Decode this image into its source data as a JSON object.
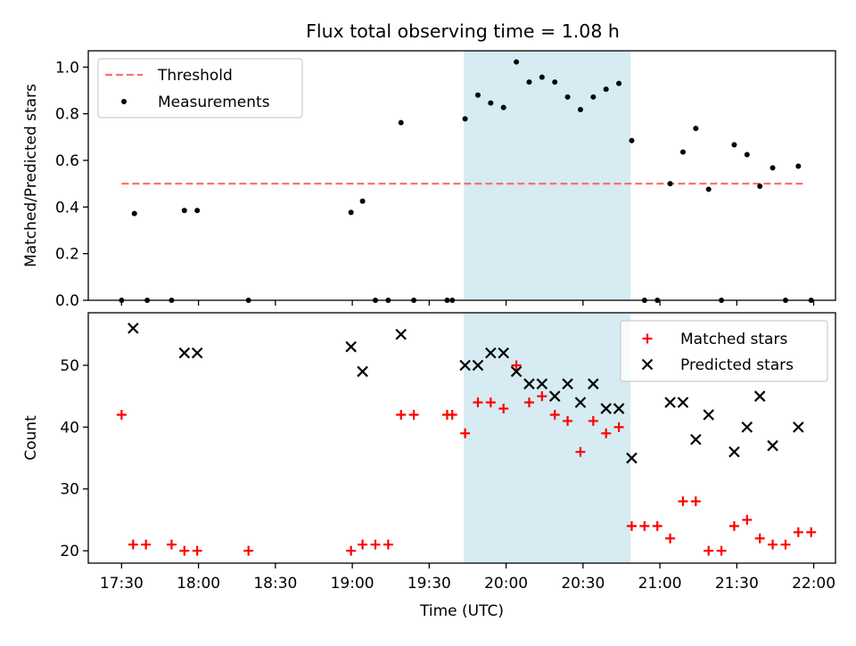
{
  "chart_data": {
    "type": "scatter",
    "title": "Flux total observing time = 1.08 h",
    "xlabel": "Time (UTC)",
    "x_ticks": [
      {
        "t": 0,
        "label": "17:30"
      },
      {
        "t": 30,
        "label": "18:00"
      },
      {
        "t": 60,
        "label": "18:30"
      },
      {
        "t": 90,
        "label": "19:00"
      },
      {
        "t": 120,
        "label": "19:30"
      },
      {
        "t": 150,
        "label": "20:00"
      },
      {
        "t": 180,
        "label": "20:30"
      },
      {
        "t": 210,
        "label": "21:00"
      },
      {
        "t": 240,
        "label": "21:30"
      },
      {
        "t": 270,
        "label": "22:00"
      }
    ],
    "highlight_span": {
      "start": 133.5,
      "end": 198.5,
      "color": "#add8e6"
    },
    "top_panel": {
      "ylabel": "Matched/Predicted stars",
      "ylim": [
        0,
        1.07
      ],
      "y_ticks": [
        {
          "v": 0.0,
          "label": "0.0"
        },
        {
          "v": 0.2,
          "label": "0.2"
        },
        {
          "v": 0.4,
          "label": "0.4"
        },
        {
          "v": 0.6,
          "label": "0.6"
        },
        {
          "v": 0.8,
          "label": "0.8"
        },
        {
          "v": 1.0,
          "label": "1.0"
        }
      ],
      "legend_position": "top-left",
      "threshold": {
        "name": "Threshold",
        "value": 0.5,
        "t_start": 0,
        "t_end": 267,
        "color": "#ff7070"
      },
      "measurements": {
        "name": "Measurements",
        "color": "#000000",
        "points": [
          [
            0,
            0
          ],
          [
            5,
            0.372
          ],
          [
            10,
            0
          ],
          [
            19.5,
            0
          ],
          [
            24.5,
            0.385
          ],
          [
            29.5,
            0.385
          ],
          [
            49.5,
            0
          ],
          [
            89.5,
            0.377
          ],
          [
            94,
            0.425
          ],
          [
            99,
            0
          ],
          [
            104,
            0
          ],
          [
            109,
            0.762
          ],
          [
            114,
            0
          ],
          [
            127,
            0
          ],
          [
            129,
            0
          ],
          [
            134,
            0.778
          ],
          [
            139,
            0.88
          ],
          [
            144,
            0.846
          ],
          [
            149,
            0.827
          ],
          [
            154,
            1.022
          ],
          [
            159,
            0.936
          ],
          [
            164,
            0.957
          ],
          [
            169,
            0.936
          ],
          [
            174,
            0.872
          ],
          [
            179,
            0.818
          ],
          [
            184,
            0.872
          ],
          [
            189,
            0.905
          ],
          [
            194,
            0.93
          ],
          [
            199,
            0.685
          ],
          [
            204,
            0
          ],
          [
            209,
            0
          ],
          [
            214,
            0.5
          ],
          [
            219,
            0.636
          ],
          [
            224,
            0.737
          ],
          [
            229,
            0.476
          ],
          [
            234,
            0
          ],
          [
            239,
            0.667
          ],
          [
            244,
            0.625
          ],
          [
            249,
            0.489
          ],
          [
            254,
            0.568
          ],
          [
            259,
            0
          ],
          [
            264,
            0.575
          ],
          [
            269,
            0
          ]
        ]
      }
    },
    "bottom_panel": {
      "ylabel": "Count",
      "ylim": [
        18,
        58.5
      ],
      "y_ticks": [
        {
          "v": 20,
          "label": "20"
        },
        {
          "v": 30,
          "label": "30"
        },
        {
          "v": 40,
          "label": "40"
        },
        {
          "v": 50,
          "label": "50"
        }
      ],
      "legend_position": "top-right",
      "series": [
        {
          "name": "Matched stars",
          "marker": "plus",
          "color": "#ff0000",
          "points": [
            [
              0,
              42
            ],
            [
              4.5,
              21
            ],
            [
              9.5,
              21
            ],
            [
              19.5,
              21
            ],
            [
              24.5,
              20
            ],
            [
              29.5,
              20
            ],
            [
              49.5,
              20
            ],
            [
              89.5,
              20
            ],
            [
              94,
              21
            ],
            [
              99,
              21
            ],
            [
              104,
              21
            ],
            [
              109,
              42
            ],
            [
              114,
              42
            ],
            [
              127,
              42
            ],
            [
              129,
              42
            ],
            [
              134,
              39
            ],
            [
              139,
              44
            ],
            [
              144,
              44
            ],
            [
              149,
              43
            ],
            [
              154,
              50
            ],
            [
              159,
              44
            ],
            [
              164,
              45
            ],
            [
              169,
              42
            ],
            [
              174,
              41
            ],
            [
              179,
              36
            ],
            [
              184,
              41
            ],
            [
              189,
              39
            ],
            [
              194,
              40
            ],
            [
              199,
              24
            ],
            [
              204,
              24
            ],
            [
              209,
              24
            ],
            [
              214,
              22
            ],
            [
              219,
              28
            ],
            [
              224,
              28
            ],
            [
              229,
              20
            ],
            [
              234,
              20
            ],
            [
              239,
              24
            ],
            [
              244,
              25
            ],
            [
              249,
              22
            ],
            [
              254,
              21
            ],
            [
              259,
              21
            ],
            [
              264,
              23
            ],
            [
              269,
              23
            ]
          ]
        },
        {
          "name": "Predicted stars",
          "marker": "x",
          "color": "#000000",
          "points": [
            [
              4.5,
              56
            ],
            [
              24.5,
              52
            ],
            [
              29.5,
              52
            ],
            [
              89.5,
              53
            ],
            [
              94,
              49
            ],
            [
              109,
              55
            ],
            [
              134,
              50
            ],
            [
              139,
              50
            ],
            [
              144,
              52
            ],
            [
              149,
              52
            ],
            [
              154,
              49
            ],
            [
              159,
              47
            ],
            [
              164,
              47
            ],
            [
              169,
              45
            ],
            [
              174,
              47
            ],
            [
              179,
              44
            ],
            [
              184,
              47
            ],
            [
              189,
              43
            ],
            [
              194,
              43
            ],
            [
              199,
              35
            ],
            [
              214,
              44
            ],
            [
              219,
              44
            ],
            [
              224,
              38
            ],
            [
              229,
              42
            ],
            [
              239,
              36
            ],
            [
              244,
              40
            ],
            [
              249,
              45
            ],
            [
              254,
              37
            ],
            [
              264,
              40
            ]
          ]
        }
      ]
    }
  }
}
